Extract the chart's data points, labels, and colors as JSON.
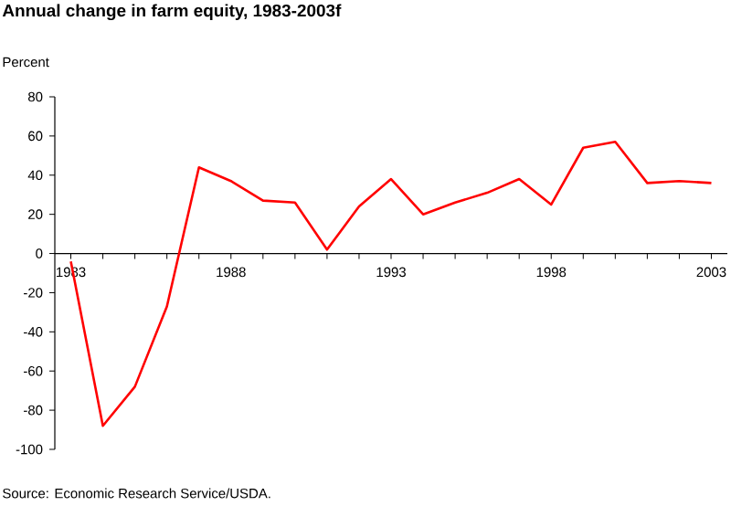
{
  "chart_data": {
    "type": "line",
    "title": "Annual change in farm equity, 1983-2003f",
    "ylabel": "Percent",
    "annotations": [
      "Source: Economic Research Service/USDA."
    ],
    "x": [
      1983,
      1984,
      1985,
      1986,
      1987,
      1988,
      1989,
      1990,
      1991,
      1992,
      1993,
      1994,
      1995,
      1996,
      1997,
      1998,
      1999,
      2000,
      2001,
      2002,
      2003
    ],
    "series": [
      {
        "color": "#ff0000",
        "values": [
          -4,
          -88,
          -68,
          -27,
          44,
          37,
          27,
          26,
          2,
          24,
          38,
          20,
          26,
          31,
          38,
          25,
          54,
          57,
          36,
          37,
          36
        ]
      }
    ],
    "xlim": [
      1982.5,
      2003.5
    ],
    "xticks": [
      1983,
      {
        "value": 1984,
        "label": null
      },
      {
        "value": 1985,
        "label": null
      },
      {
        "value": 1986,
        "label": null
      },
      {
        "value": 1987,
        "label": null
      },
      1988,
      {
        "value": 1989,
        "label": null
      },
      {
        "value": 1990,
        "label": null
      },
      {
        "value": 1991,
        "label": null
      },
      {
        "value": 1992,
        "label": null
      },
      1993,
      {
        "value": 1994,
        "label": null
      },
      {
        "value": 1995,
        "label": null
      },
      {
        "value": 1996,
        "label": null
      },
      {
        "value": 1997,
        "label": null
      },
      1998,
      {
        "value": 1999,
        "label": null
      },
      {
        "value": 2000,
        "label": null
      },
      {
        "value": 2001,
        "label": null
      },
      {
        "value": 2002,
        "label": null
      },
      2003
    ],
    "ylim": [
      -100,
      80
    ],
    "yticks": [
      -100,
      -80,
      -60,
      -40,
      -20,
      0,
      20,
      40,
      60,
      80
    ],
    "grid": false,
    "legend": false,
    "marker": "none",
    "line_style": "solid"
  }
}
